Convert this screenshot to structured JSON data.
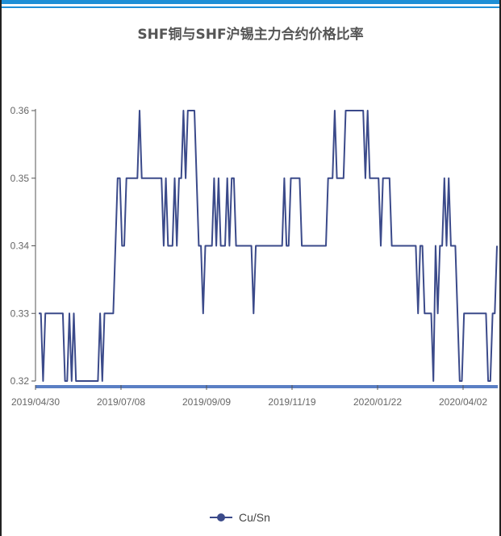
{
  "chart_data": {
    "type": "line",
    "title": "SHF铜与SHF沪锡主力合约价格比率",
    "xlabel": "",
    "ylabel": "",
    "ylim": [
      0.32,
      0.36
    ],
    "yticks": [
      "0.32",
      "0.33",
      "0.34",
      "0.35",
      "0.36"
    ],
    "xticks": [
      "2019/04/30",
      "2019/07/08",
      "2019/09/09",
      "2019/11/19",
      "2020/01/22",
      "2020/04/02"
    ],
    "grid": false,
    "legend_position": "bottom",
    "color": "#3b4a8a",
    "series": [
      {
        "name": "Cu/Sn",
        "values": [
          0.33,
          0.33,
          0.32,
          0.33,
          0.33,
          0.33,
          0.33,
          0.33,
          0.33,
          0.33,
          0.33,
          0.33,
          0.32,
          0.32,
          0.33,
          0.32,
          0.33,
          0.32,
          0.32,
          0.32,
          0.32,
          0.32,
          0.32,
          0.32,
          0.32,
          0.32,
          0.32,
          0.32,
          0.33,
          0.32,
          0.33,
          0.33,
          0.33,
          0.33,
          0.33,
          0.34,
          0.35,
          0.35,
          0.34,
          0.34,
          0.35,
          0.35,
          0.35,
          0.35,
          0.35,
          0.35,
          0.36,
          0.35,
          0.35,
          0.35,
          0.35,
          0.35,
          0.35,
          0.35,
          0.35,
          0.35,
          0.35,
          0.34,
          0.35,
          0.34,
          0.34,
          0.34,
          0.35,
          0.34,
          0.35,
          0.35,
          0.36,
          0.35,
          0.36,
          0.36,
          0.36,
          0.36,
          0.35,
          0.34,
          0.34,
          0.33,
          0.34,
          0.34,
          0.34,
          0.34,
          0.35,
          0.34,
          0.35,
          0.34,
          0.34,
          0.34,
          0.35,
          0.34,
          0.35,
          0.35,
          0.34,
          0.34,
          0.34,
          0.34,
          0.34,
          0.34,
          0.34,
          0.34,
          0.33,
          0.34,
          0.34,
          0.34,
          0.34,
          0.34,
          0.34,
          0.34,
          0.34,
          0.34,
          0.34,
          0.34,
          0.34,
          0.34,
          0.35,
          0.34,
          0.34,
          0.35,
          0.35,
          0.35,
          0.35,
          0.35,
          0.34,
          0.34,
          0.34,
          0.34,
          0.34,
          0.34,
          0.34,
          0.34,
          0.34,
          0.34,
          0.34,
          0.34,
          0.35,
          0.35,
          0.35,
          0.36,
          0.35,
          0.35,
          0.35,
          0.35,
          0.36,
          0.36,
          0.36,
          0.36,
          0.36,
          0.36,
          0.36,
          0.36,
          0.36,
          0.35,
          0.36,
          0.35,
          0.35,
          0.35,
          0.35,
          0.35,
          0.34,
          0.35,
          0.35,
          0.35,
          0.35,
          0.34,
          0.34,
          0.34,
          0.34,
          0.34,
          0.34,
          0.34,
          0.34,
          0.34,
          0.34,
          0.34,
          0.34,
          0.33,
          0.34,
          0.34,
          0.33,
          0.33,
          0.33,
          0.33,
          0.32,
          0.34,
          0.33,
          0.34,
          0.34,
          0.35,
          0.34,
          0.35,
          0.34,
          0.34,
          0.34,
          0.33,
          0.32,
          0.32,
          0.33,
          0.33,
          0.33,
          0.33,
          0.33,
          0.33,
          0.33,
          0.33,
          0.33,
          0.33,
          0.33,
          0.32,
          0.32,
          0.33,
          0.33,
          0.34
        ]
      }
    ]
  }
}
